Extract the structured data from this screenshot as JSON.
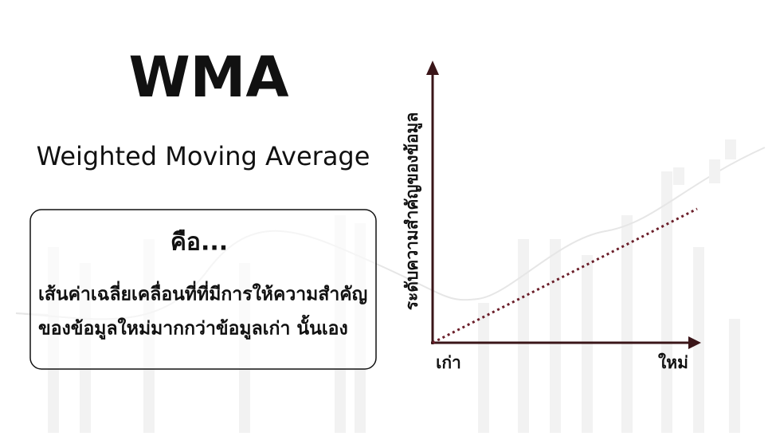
{
  "header": {
    "title": "WMA",
    "subtitle": "Weighted Moving Average"
  },
  "box": {
    "heading": "คือ...",
    "lines": [
      "เส้นค่าเฉลี่ยเคลื่อนที่ที่มีการให้ความสำคัญ",
      "ของข้อมูลใหม่มากกว่าข้อมูลเก่า นั้นเอง"
    ]
  },
  "diagram": {
    "y_axis_label": "ระดับความสำคัญของข้อมูล",
    "x_labels": [
      "เก่า",
      "ใหม่"
    ]
  }
}
